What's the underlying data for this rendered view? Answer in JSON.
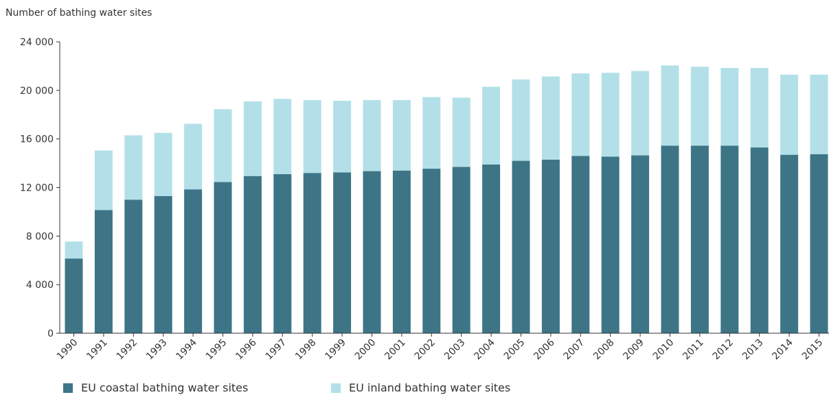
{
  "chart_data": {
    "type": "bar",
    "stacked": true,
    "ylabel": "Number of bathing water sites",
    "ylim": [
      0,
      24000
    ],
    "yticks": [
      0,
      4000,
      8000,
      12000,
      16000,
      20000,
      24000
    ],
    "ytick_labels": [
      "0",
      "4 000",
      "8 000",
      "12 000",
      "16 000",
      "20 000",
      "24 000"
    ],
    "categories": [
      "1990",
      "1991",
      "1992",
      "1993",
      "1994",
      "1995",
      "1996",
      "1997",
      "1998",
      "1999",
      "2000",
      "2001",
      "2002",
      "2003",
      "2004",
      "2005",
      "2006",
      "2007",
      "2008",
      "2009",
      "2010",
      "2011",
      "2012",
      "2013",
      "2014",
      "2015"
    ],
    "series": [
      {
        "name": "EU coastal bathing water sites",
        "color": "#3d7587",
        "values": [
          6150,
          10150,
          11000,
          11300,
          11850,
          12450,
          12950,
          13100,
          13200,
          13250,
          13350,
          13400,
          13550,
          13700,
          13900,
          14200,
          14300,
          14600,
          14550,
          14650,
          15450,
          15450,
          15450,
          15300,
          14700,
          14750
        ]
      },
      {
        "name": "EU inland bathing water sites",
        "color": "#b3e0e8",
        "values": [
          1400,
          4900,
          5300,
          5200,
          5400,
          6000,
          6150,
          6200,
          6000,
          5900,
          5850,
          5800,
          5900,
          5700,
          6400,
          6700,
          6850,
          6800,
          6900,
          6950,
          6600,
          6500,
          6400,
          6550,
          6600,
          6550
        ]
      }
    ],
    "legend_position": "bottom-left",
    "grid": false
  }
}
